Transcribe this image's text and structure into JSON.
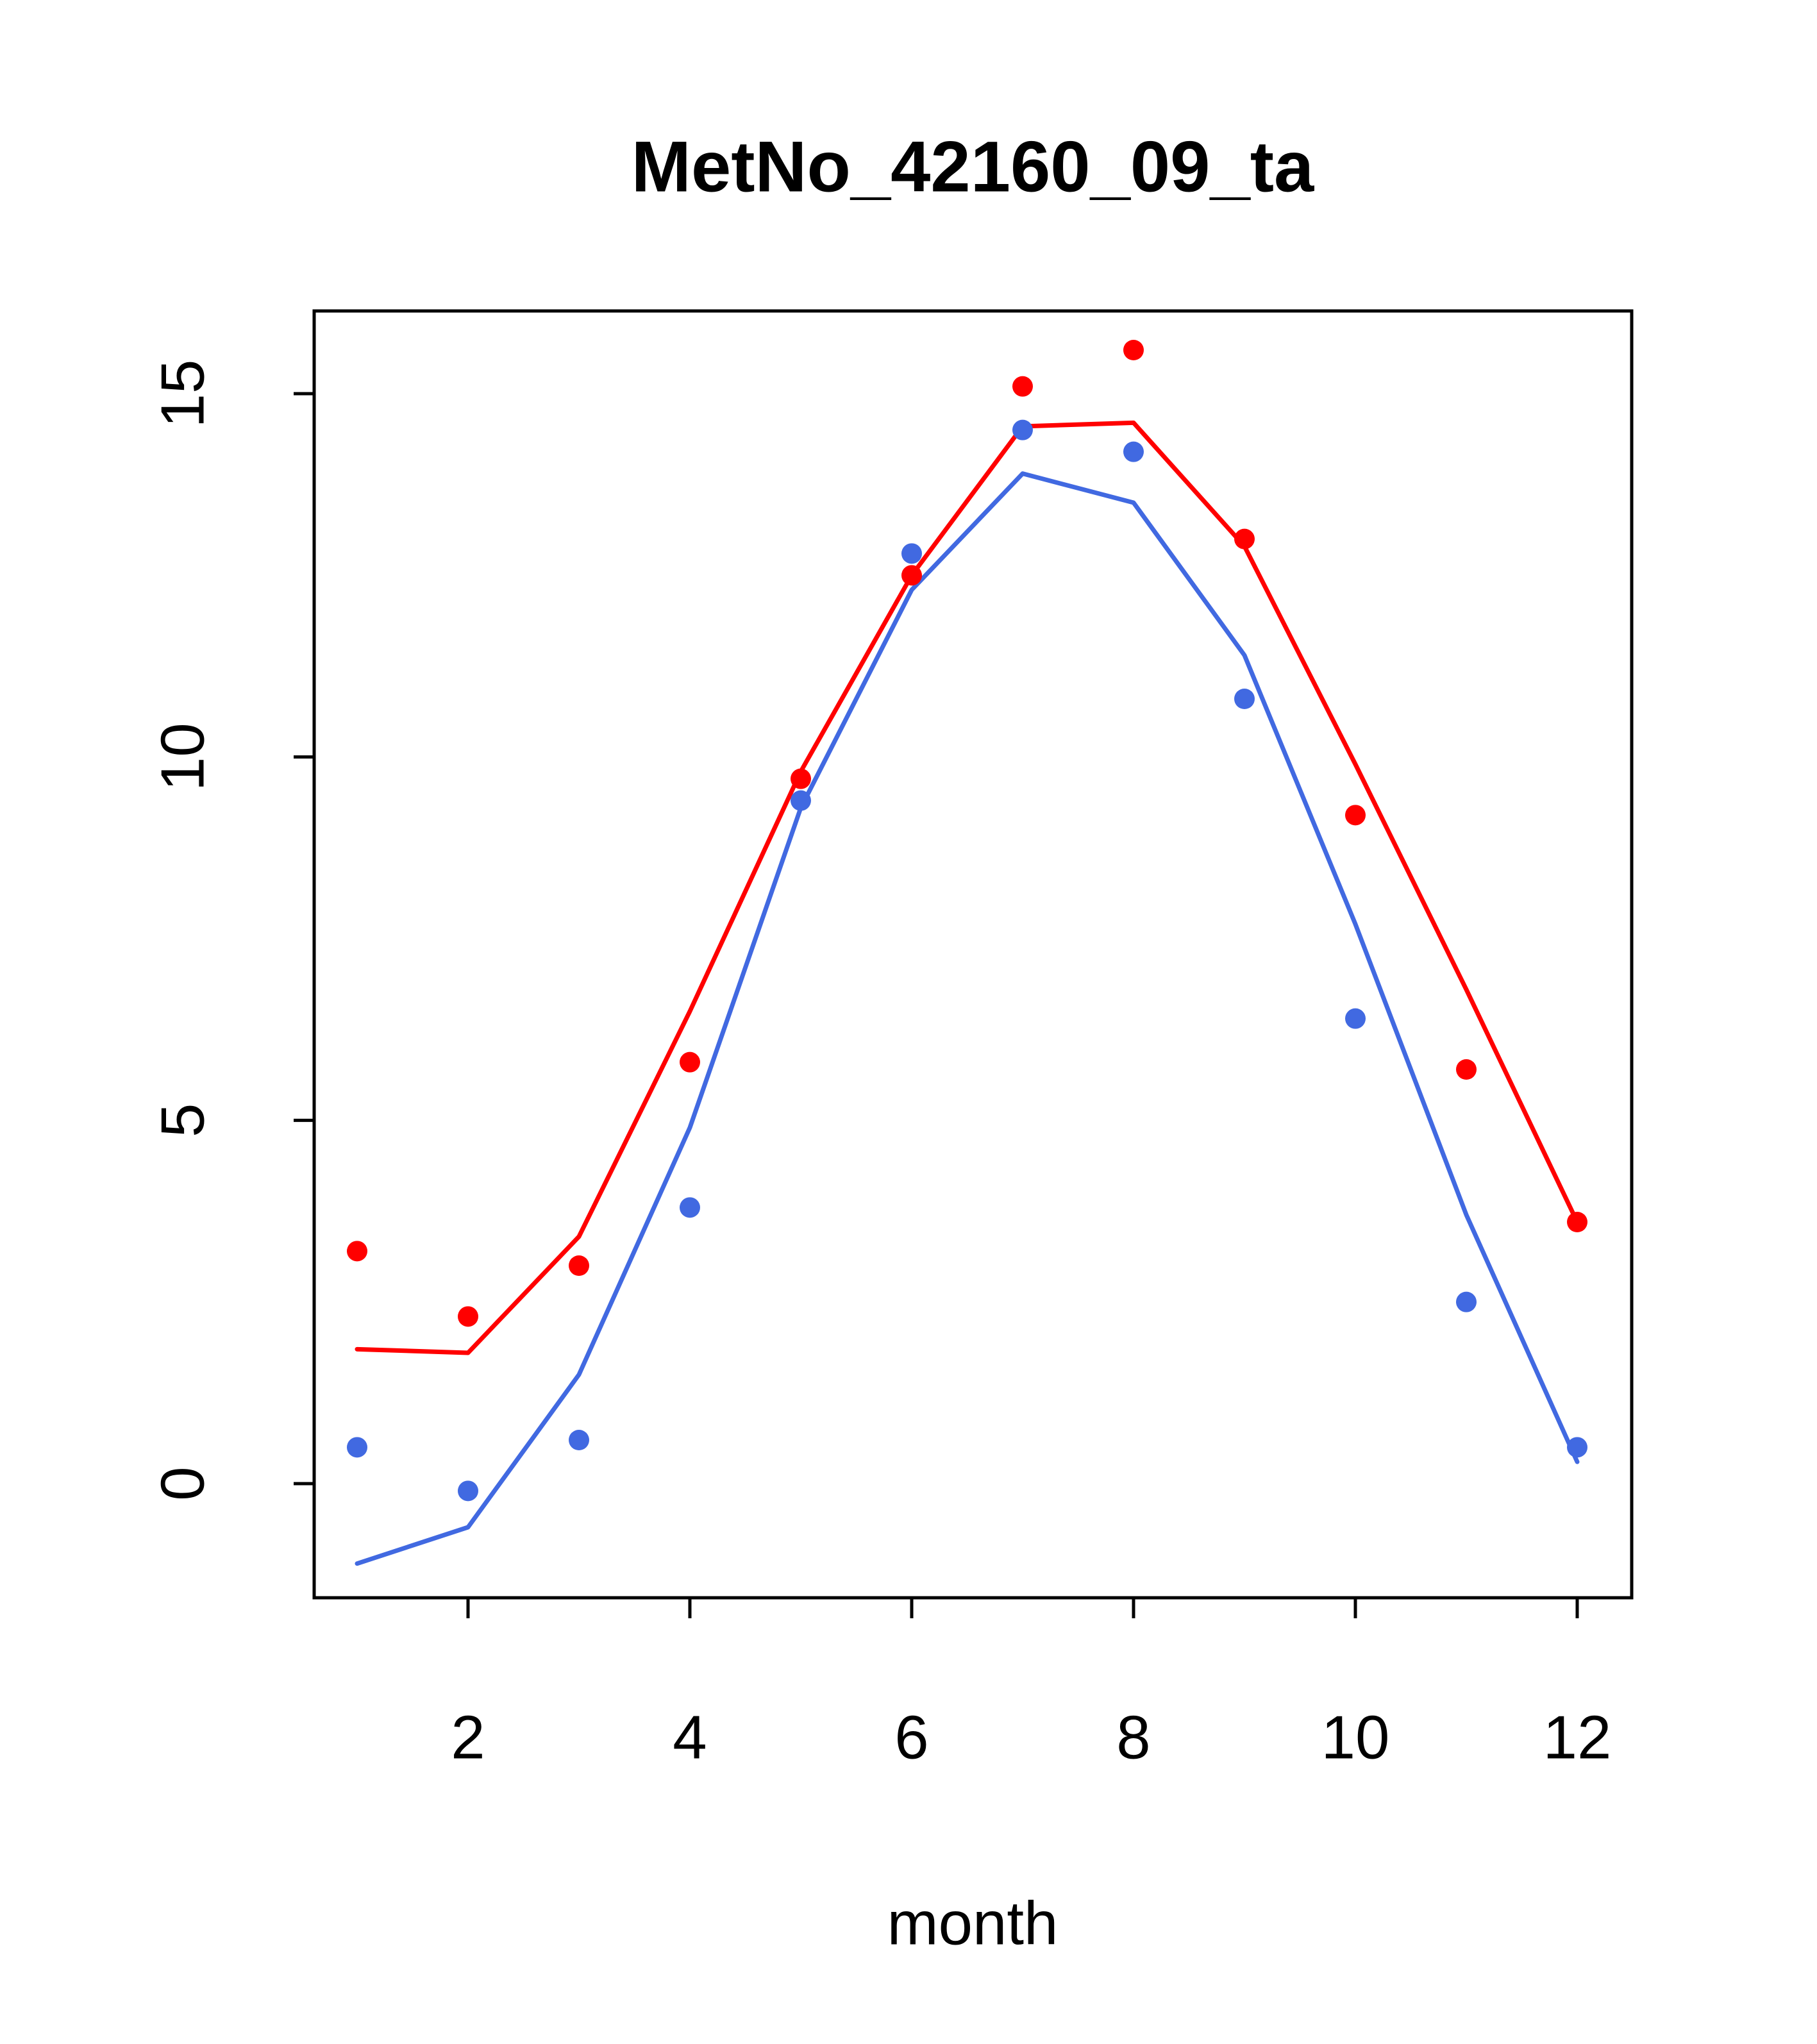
{
  "title": "MetNo_42160_09_ta",
  "chart_data": {
    "type": "line",
    "title": "MetNo_42160_09_ta",
    "xlabel": "month",
    "ylabel": "",
    "x": [
      1,
      2,
      3,
      4,
      5,
      6,
      7,
      8,
      9,
      10,
      11,
      12
    ],
    "xticks": [
      2,
      4,
      6,
      8,
      10,
      12
    ],
    "yticks": [
      0,
      5,
      10,
      15
    ],
    "xlim": [
      0.6,
      12.5
    ],
    "ylim": [
      -1.6,
      16.1
    ],
    "grid": false,
    "legend": "none",
    "colors": {
      "red": "#FF0000",
      "blue": "#4169E1"
    },
    "series": [
      {
        "name": "blue-line",
        "type": "line",
        "color": "#4169E1",
        "values": [
          -1.1,
          -0.6,
          1.5,
          4.9,
          9.3,
          12.3,
          13.9,
          13.5,
          11.4,
          7.7,
          3.7,
          0.3
        ]
      },
      {
        "name": "red-line",
        "type": "line",
        "color": "#FF0000",
        "values": [
          1.85,
          1.8,
          3.4,
          6.5,
          9.8,
          12.5,
          14.55,
          14.6,
          12.9,
          9.9,
          6.8,
          3.6
        ]
      },
      {
        "name": "blue-points",
        "type": "scatter",
        "color": "#4169E1",
        "values": [
          0.5,
          -0.1,
          0.6,
          3.8,
          9.4,
          12.8,
          14.5,
          14.2,
          10.8,
          6.4,
          2.5,
          0.5
        ]
      },
      {
        "name": "red-points",
        "type": "scatter",
        "color": "#FF0000",
        "values": [
          3.2,
          2.3,
          3.0,
          5.8,
          9.7,
          12.5,
          15.1,
          15.6,
          13.0,
          9.2,
          5.7,
          3.6
        ]
      }
    ]
  }
}
